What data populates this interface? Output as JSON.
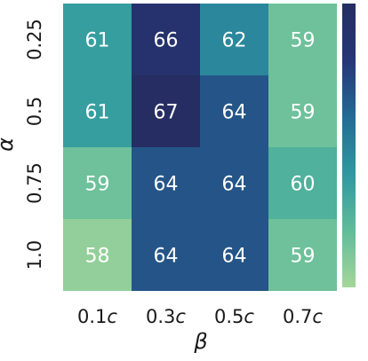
{
  "chart_data": {
    "type": "heatmap",
    "xlabel": "β",
    "ylabel": "α",
    "x_categories": [
      {
        "num": "0.1",
        "unit": "c"
      },
      {
        "num": "0.3",
        "unit": "c"
      },
      {
        "num": "0.5",
        "unit": "c"
      },
      {
        "num": "0.7",
        "unit": "c"
      }
    ],
    "y_categories": [
      "0.25",
      "0.5",
      "0.75",
      "1.0"
    ],
    "values": [
      [
        61,
        66,
        62,
        59
      ],
      [
        61,
        67,
        64,
        59
      ],
      [
        59,
        64,
        64,
        60
      ],
      [
        58,
        64,
        64,
        59
      ]
    ],
    "value_range": [
      57.5,
      67
    ],
    "colormap": [
      "#a6d69a",
      "#5fbc9a",
      "#2f98a0",
      "#236b95",
      "#273677",
      "#252d62"
    ],
    "annotation_color": "#ffffff",
    "colorbar": true,
    "grid": false
  }
}
